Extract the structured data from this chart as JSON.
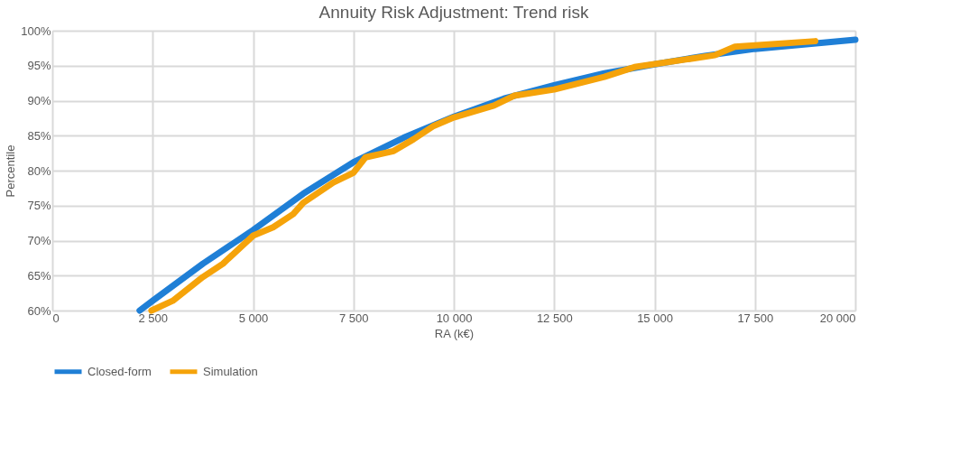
{
  "chart_data": {
    "type": "line",
    "title": "Annuity Risk Adjustment: Trend risk",
    "xlabel": "RA (k€)",
    "ylabel": "Percentile",
    "xlim": [
      0,
      20000
    ],
    "xticks": [
      {
        "value": 0,
        "label": "0"
      },
      {
        "value": 2500,
        "label": "2 500"
      },
      {
        "value": 5000,
        "label": "5 000"
      },
      {
        "value": 7500,
        "label": "7 500"
      },
      {
        "value": 10000,
        "label": "10 000"
      },
      {
        "value": 12500,
        "label": "12 500"
      },
      {
        "value": 15000,
        "label": "15 000"
      },
      {
        "value": 17500,
        "label": "17 500"
      },
      {
        "value": 20000,
        "label": "20 000"
      }
    ],
    "ylim": [
      60,
      100
    ],
    "yticks": [
      {
        "value": 60,
        "label": "60%"
      },
      {
        "value": 65,
        "label": "65%"
      },
      {
        "value": 70,
        "label": "70%"
      },
      {
        "value": 75,
        "label": "75%"
      },
      {
        "value": 80,
        "label": "80%"
      },
      {
        "value": 85,
        "label": "85%"
      },
      {
        "value": 90,
        "label": "90%"
      },
      {
        "value": 95,
        "label": "95%"
      },
      {
        "value": 100,
        "label": "100%"
      }
    ],
    "grid": true,
    "legend": "bottom",
    "marker": "none",
    "line_style": "solid",
    "series": [
      {
        "name": "Closed-form",
        "color": "#1f7fd6",
        "x": [
          2175,
          2500,
          3750,
          5000,
          6250,
          7500,
          8750,
          10000,
          11250,
          12500,
          13750,
          15000,
          16250,
          17500,
          20000
        ],
        "values": [
          60,
          61.4,
          66.7,
          71.5,
          76.7,
          81.2,
          84.7,
          87.7,
          90.3,
          92.2,
          93.9,
          95.2,
          96.4,
          97.4,
          98.7
        ]
      },
      {
        "name": "Simulation",
        "color": "#f5a30a",
        "x": [
          2470,
          3000,
          3750,
          4250,
          5000,
          5500,
          6000,
          6250,
          7000,
          7500,
          7800,
          8500,
          9000,
          9500,
          10000,
          11000,
          11500,
          12500,
          13750,
          14500,
          16500,
          17000,
          19000
        ],
        "values": [
          60,
          61.4,
          64.8,
          66.7,
          70.7,
          71.9,
          73.8,
          75.4,
          78.3,
          79.7,
          81.9,
          82.8,
          84.5,
          86.4,
          87.6,
          89.3,
          90.7,
          91.6,
          93.4,
          94.8,
          96.5,
          97.7,
          98.5
        ]
      }
    ]
  }
}
